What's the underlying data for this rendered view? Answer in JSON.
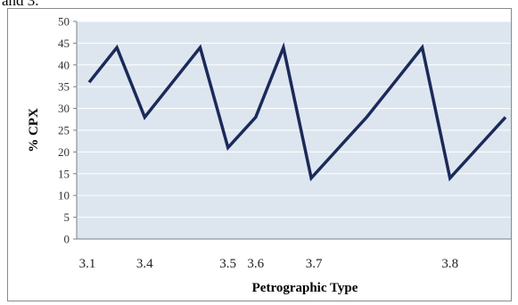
{
  "caption_fragment": "and 3.",
  "chart_data": {
    "type": "line",
    "ylabel": "% CPX",
    "xlabel": "Petrographic Type",
    "ylim": [
      0,
      50
    ],
    "y_ticks": [
      0,
      5,
      10,
      15,
      20,
      25,
      30,
      35,
      40,
      45,
      50
    ],
    "x_tick_labels": [
      "3.1",
      "3.4",
      "3.5",
      "3.6",
      "3.7",
      "3.8"
    ],
    "grid": "horizontal",
    "legend": "none",
    "colors": {
      "line": "#1b2a5a",
      "plot_bg": "#dde6ef",
      "grid": "#ffffff"
    },
    "series": [
      {
        "values": [
          36,
          44,
          28,
          36,
          44,
          21,
          28,
          44,
          14,
          21,
          28,
          36,
          44,
          14,
          21,
          28
        ]
      }
    ]
  }
}
